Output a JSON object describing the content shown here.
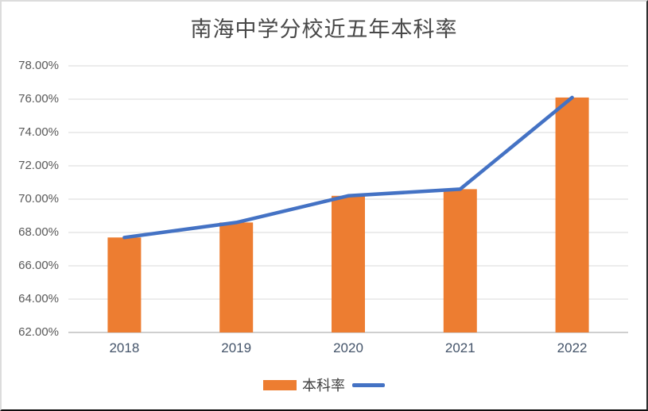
{
  "chart_data": {
    "type": "combo",
    "title": "南海中学分校近五年本科率",
    "categories": [
      "2018",
      "2019",
      "2020",
      "2021",
      "2022"
    ],
    "series": [
      {
        "name": "本科率",
        "type": "bar",
        "color": "#ED7D31",
        "values": [
          67.7,
          68.6,
          70.2,
          70.6,
          76.1
        ]
      },
      {
        "name": "",
        "type": "line",
        "color": "#4472C4",
        "values": [
          67.7,
          68.6,
          70.2,
          70.6,
          76.1
        ]
      }
    ],
    "ylim": [
      62,
      78
    ],
    "ytick_step": 2,
    "ytick_labels": [
      "78.00%",
      "76.00%",
      "74.00%",
      "72.00%",
      "70.00%",
      "68.00%",
      "66.00%",
      "64.00%",
      "62.00%"
    ],
    "grid": true,
    "gridline_color": "#D9D9D9",
    "axis_line_color": "#BFBFBF",
    "xlabel": "",
    "ylabel": "",
    "legend_position": "bottom",
    "legend_label": "本科率"
  }
}
